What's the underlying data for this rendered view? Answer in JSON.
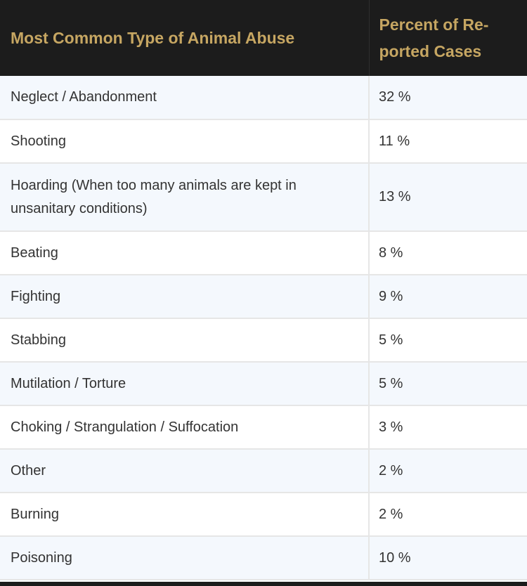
{
  "chart_data": {
    "type": "table",
    "columns": [
      "Most Common Type of Animal Abuse",
      "Percent of Reported Cases"
    ],
    "header_right_lines": [
      "Percent of Re-",
      "ported Cases"
    ],
    "rows": [
      {
        "type": "Neglect / Abandonment",
        "percent": "32 %"
      },
      {
        "type": "Shooting",
        "percent": "11 %"
      },
      {
        "type": "Hoarding (When too many animals are kept in unsanitary conditions)",
        "percent": "13 %"
      },
      {
        "type": "Beating",
        "percent": "8 %"
      },
      {
        "type": "Fighting",
        "percent": "9 %"
      },
      {
        "type": "Stabbing",
        "percent": "5 %"
      },
      {
        "type": "Mutilation / Torture",
        "percent": "5 %"
      },
      {
        "type": "Choking / Strangulation / Suffocation",
        "percent": "3 %"
      },
      {
        "type": "Other",
        "percent": "2 %"
      },
      {
        "type": "Burning",
        "percent": "2 %"
      },
      {
        "type": "Poisoning",
        "percent": "10 %"
      }
    ]
  },
  "colors": {
    "header_background": "#1c1c1c",
    "header_text": "#c6a662",
    "row_alt_background": "#f4f8fd",
    "row_background": "#ffffff",
    "body_text": "#333333",
    "grid_line": "#e6e6e6"
  }
}
